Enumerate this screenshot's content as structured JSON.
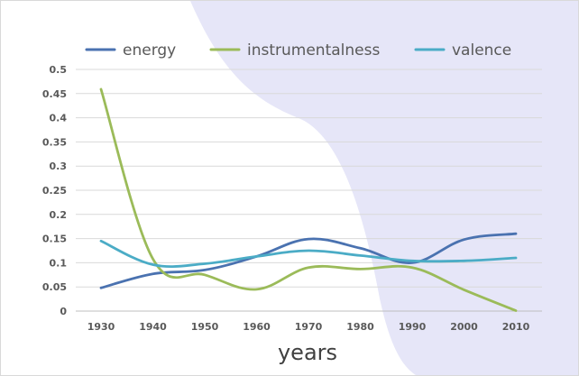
{
  "chart_data": {
    "type": "line",
    "title": "",
    "xlabel": "years",
    "ylabel": "",
    "categories": [
      "1930",
      "1940",
      "1950",
      "1960",
      "1970",
      "1980",
      "1990",
      "2000",
      "2010"
    ],
    "y_ticks": [
      "0",
      "0.05",
      "0.1",
      "0.15",
      "0.2",
      "0.25",
      "0.3",
      "0.35",
      "0.4",
      "0.45",
      "0.5"
    ],
    "ylim": [
      0,
      0.5
    ],
    "grid": true,
    "legend_position": "top",
    "series": [
      {
        "name": "energy",
        "color": "#4a72b0",
        "values": [
          0.048,
          0.077,
          0.085,
          0.113,
          0.149,
          0.13,
          0.1,
          0.148,
          0.16
        ]
      },
      {
        "name": "instrumentalness",
        "color": "#9bbb59",
        "values": [
          0.459,
          0.108,
          0.075,
          0.045,
          0.09,
          0.087,
          0.09,
          0.044,
          0.001
        ]
      },
      {
        "name": "valence",
        "color": "#4bacc6",
        "values": [
          0.145,
          0.096,
          0.098,
          0.113,
          0.125,
          0.115,
          0.104,
          0.104,
          0.11
        ]
      }
    ]
  }
}
